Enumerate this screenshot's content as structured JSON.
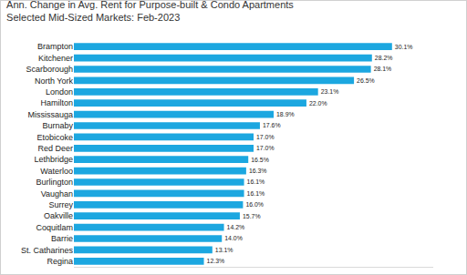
{
  "chart_data": {
    "type": "bar",
    "orientation": "horizontal",
    "title": "Ann. Change in Avg. Rent for Purpose-built & Condo Apartments",
    "subtitle": "Selected Mid-Sized Markets: Feb-2023",
    "categories": [
      "Brampton",
      "Kitchener",
      "Scarborough",
      "North York",
      "London",
      "Hamilton",
      "Mississauga",
      "Burnaby",
      "Etobicoke",
      "Red Deer",
      "Lethbridge",
      "Waterloo",
      "Burlington",
      "Vaughan",
      "Surrey",
      "Oakville",
      "Coquitlam",
      "Barrie",
      "St. Catharines",
      "Regina"
    ],
    "values": [
      30.1,
      28.2,
      28.1,
      26.5,
      23.1,
      22.0,
      18.9,
      17.6,
      17.0,
      17.0,
      16.5,
      16.3,
      16.1,
      16.1,
      16.0,
      15.7,
      14.2,
      14.0,
      13.1,
      12.3
    ],
    "value_labels": [
      "30.1%",
      "28.2%",
      "28.1%",
      "26.5%",
      "23.1%",
      "22.0%",
      "18.9%",
      "17.6%",
      "17.0%",
      "17.0%",
      "16.5%",
      "16.3%",
      "16.1%",
      "16.1%",
      "16.0%",
      "15.7%",
      "14.2%",
      "14.0%",
      "13.1%",
      "12.3%"
    ],
    "color": "#1ca7e0",
    "xlim": [
      0,
      34
    ],
    "xticks": [],
    "grid": false,
    "data_labels": true,
    "tick_labels": "y"
  }
}
